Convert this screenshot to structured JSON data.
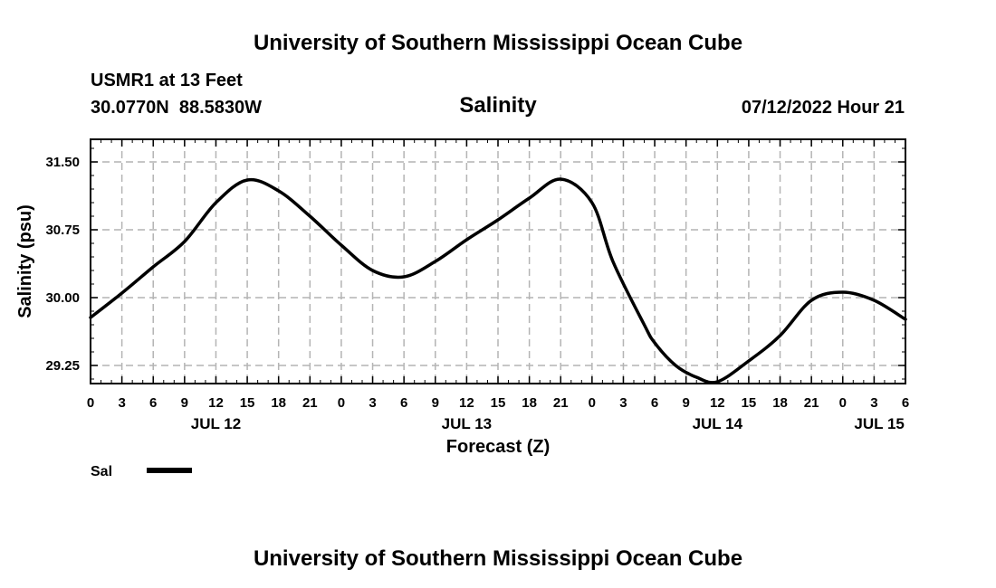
{
  "header": {
    "title_top": "University of Southern Mississippi Ocean Cube",
    "station": "USMR1 at 13 Feet",
    "coords": "30.0770N  88.5830W",
    "date": "07/12/2022 Hour 21",
    "title_bottom": "University of Southern Mississippi Ocean Cube"
  },
  "legend": {
    "label": "Sal",
    "line_color": "#000000"
  },
  "chart_data": {
    "type": "line",
    "title": "Salinity",
    "xlabel": "Forecast (Z)",
    "ylabel": "Salinity (psu)",
    "x_unit": "hours since JUL 12 00Z",
    "xlim": [
      0,
      78
    ],
    "ylim": [
      29.05,
      31.75
    ],
    "yticks": [
      29.25,
      30.0,
      30.75,
      31.5
    ],
    "ytick_labels": [
      "29.25",
      "30.00",
      "30.75",
      "31.50"
    ],
    "xtick_hours": [
      0,
      3,
      6,
      9,
      12,
      15,
      18,
      21,
      24,
      27,
      30,
      33,
      36,
      39,
      42,
      45,
      48,
      51,
      54,
      57,
      60,
      63,
      66,
      69,
      72,
      75,
      78
    ],
    "xtick_labels": [
      "0",
      "3",
      "6",
      "9",
      "12",
      "15",
      "18",
      "21",
      "0",
      "3",
      "6",
      "9",
      "12",
      "15",
      "18",
      "21",
      "0",
      "3",
      "6",
      "9",
      "12",
      "15",
      "18",
      "21",
      "0",
      "3",
      "6"
    ],
    "date_labels": [
      {
        "text": "JUL 12",
        "hour": 12
      },
      {
        "text": "JUL 13",
        "hour": 36
      },
      {
        "text": "JUL 14",
        "hour": 60
      },
      {
        "text": "JUL 15",
        "hour": 75.5
      }
    ],
    "grid": true,
    "series": [
      {
        "name": "Sal",
        "color": "#000000",
        "x": [
          0,
          3,
          6,
          9,
          12,
          15,
          18,
          21,
          24,
          27,
          30,
          33,
          36,
          39,
          42,
          45,
          48,
          50,
          53,
          54,
          56,
          58,
          60,
          63,
          66,
          69,
          72,
          75,
          78
        ],
        "values": [
          29.78,
          30.05,
          30.34,
          30.62,
          31.05,
          31.3,
          31.18,
          30.9,
          30.58,
          30.3,
          30.23,
          30.4,
          30.64,
          30.86,
          31.1,
          31.31,
          31.05,
          30.4,
          29.7,
          29.5,
          29.25,
          29.12,
          29.07,
          29.3,
          29.58,
          29.97,
          30.06,
          29.97,
          29.76
        ]
      }
    ]
  }
}
